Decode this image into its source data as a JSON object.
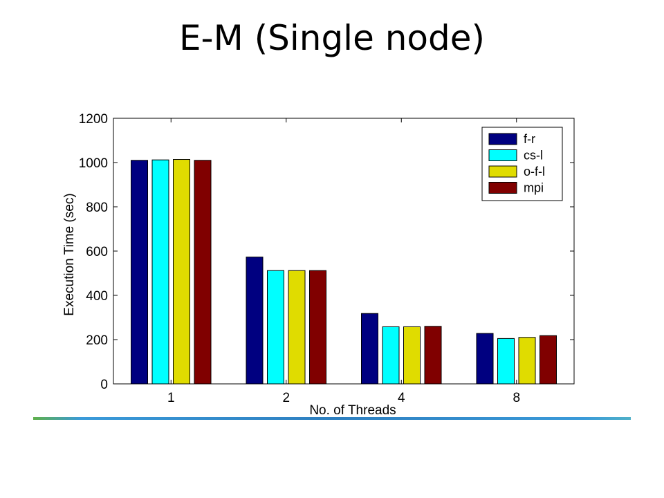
{
  "slide": {
    "title": "E-M (Single node)"
  },
  "chart_data": {
    "type": "bar",
    "title": "",
    "xlabel": "No. of Threads",
    "ylabel": "Execution Time (sec)",
    "categories": [
      "1",
      "2",
      "4",
      "8"
    ],
    "ylim": [
      0,
      1200
    ],
    "yticks": [
      0,
      200,
      400,
      600,
      800,
      1000,
      1200
    ],
    "grid": false,
    "legend_position": "top-right",
    "series": [
      {
        "name": "f-r",
        "color": "#000080",
        "values": [
          1010,
          573,
          318,
          228
        ]
      },
      {
        "name": "cs-l",
        "color": "#00ffff",
        "values": [
          1012,
          512,
          258,
          205
        ]
      },
      {
        "name": "o-f-l",
        "color": "#e0dc00",
        "values": [
          1014,
          512,
          258,
          210
        ]
      },
      {
        "name": "mpi",
        "color": "#800000",
        "values": [
          1010,
          512,
          260,
          218
        ]
      }
    ]
  },
  "footer": {
    "accent_colors": [
      "#5fb04a",
      "#2e7fc0",
      "#4fb0c8"
    ]
  }
}
